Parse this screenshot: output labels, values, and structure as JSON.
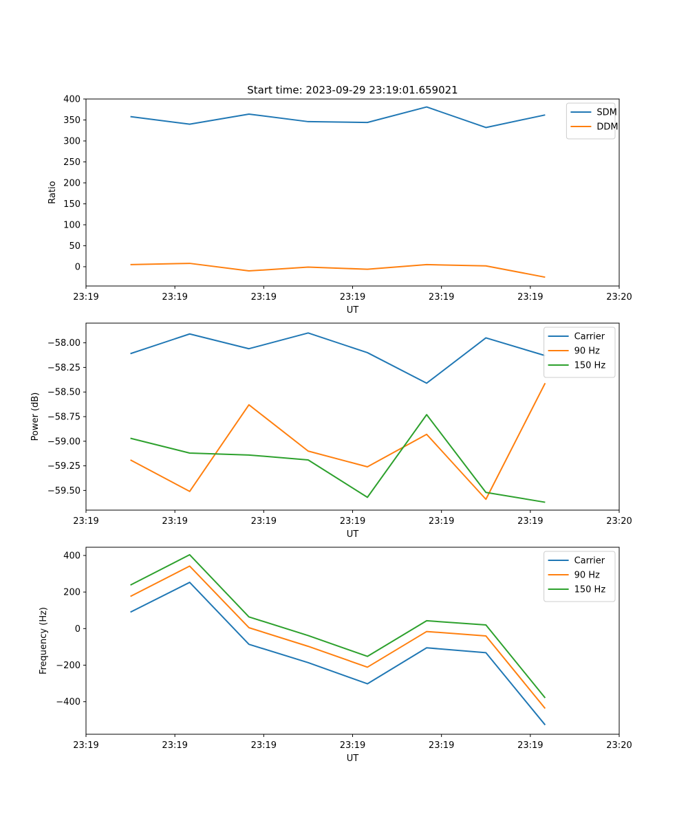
{
  "chart_data": [
    {
      "type": "line",
      "title": "Start time: 2023-09-29 23:19:01.659021",
      "xlabel": "UT",
      "ylabel": "Ratio",
      "x": [
        1,
        2,
        3,
        4,
        5,
        6,
        7,
        8
      ],
      "xlim": [
        0.25,
        9.25
      ],
      "xticks": [
        0.25,
        1.75,
        3.25,
        4.75,
        6.25,
        7.75,
        9.25
      ],
      "xtick_labels": [
        "23:19",
        "23:19",
        "23:19",
        "23:19",
        "23:19",
        "23:19",
        "23:20"
      ],
      "ylim": [
        -46,
        400
      ],
      "yticks": [
        0,
        50,
        100,
        150,
        200,
        250,
        300,
        350,
        400
      ],
      "ytick_labels": [
        "0",
        "50",
        "100",
        "150",
        "200",
        "250",
        "300",
        "350",
        "400"
      ],
      "legend_position": "top-right",
      "series": [
        {
          "name": "SDM",
          "color": "#1f77b4",
          "values": [
            358,
            340,
            364,
            346,
            344,
            381,
            332,
            362
          ]
        },
        {
          "name": "DDM",
          "color": "#ff7f0e",
          "values": [
            5,
            8,
            -10,
            -1,
            -6,
            5,
            2,
            -25
          ]
        }
      ]
    },
    {
      "type": "line",
      "title": "",
      "xlabel": "UT",
      "ylabel": "Power (dB)",
      "x": [
        1,
        2,
        3,
        4,
        5,
        6,
        7,
        8
      ],
      "xlim": [
        0.25,
        9.25
      ],
      "xticks": [
        0.25,
        1.75,
        3.25,
        4.75,
        6.25,
        7.75,
        9.25
      ],
      "xtick_labels": [
        "23:19",
        "23:19",
        "23:19",
        "23:19",
        "23:19",
        "23:19",
        "23:20"
      ],
      "ylim": [
        -59.7,
        -57.8
      ],
      "yticks": [
        -59.5,
        -59.25,
        -59.0,
        -58.75,
        -58.5,
        -58.25,
        -58.0
      ],
      "ytick_labels": [
        "−59.50",
        "−59.25",
        "−59.00",
        "−58.75",
        "−58.50",
        "−58.25",
        "−58.00"
      ],
      "legend_position": "top-right",
      "series": [
        {
          "name": "Carrier",
          "color": "#1f77b4",
          "values": [
            -58.11,
            -57.91,
            -58.06,
            -57.9,
            -58.1,
            -58.41,
            -57.95,
            -58.13
          ]
        },
        {
          "name": "90 Hz",
          "color": "#ff7f0e",
          "values": [
            -59.19,
            -59.51,
            -58.63,
            -59.1,
            -59.26,
            -58.93,
            -59.59,
            -58.41
          ]
        },
        {
          "name": "150 Hz",
          "color": "#2ca02c",
          "values": [
            -58.97,
            -59.12,
            -59.14,
            -59.19,
            -59.57,
            -58.73,
            -59.52,
            -59.62
          ]
        }
      ]
    },
    {
      "type": "line",
      "title": "",
      "xlabel": "UT",
      "ylabel": "Frequency (Hz)",
      "x": [
        1,
        2,
        3,
        4,
        5,
        6,
        7,
        8
      ],
      "xlim": [
        0.25,
        9.25
      ],
      "xticks": [
        0.25,
        1.75,
        3.25,
        4.75,
        6.25,
        7.75,
        9.25
      ],
      "xtick_labels": [
        "23:19",
        "23:19",
        "23:19",
        "23:19",
        "23:19",
        "23:19",
        "23:20"
      ],
      "ylim": [
        -578,
        445
      ],
      "yticks": [
        -400,
        -200,
        0,
        200,
        400
      ],
      "ytick_labels": [
        "−400",
        "−200",
        "0",
        "200",
        "400"
      ],
      "legend_position": "top-right",
      "series": [
        {
          "name": "Carrier",
          "color": "#1f77b4",
          "values": [
            90,
            253,
            -86,
            -186,
            -302,
            -105,
            -132,
            -527
          ]
        },
        {
          "name": "90 Hz",
          "color": "#ff7f0e",
          "values": [
            176,
            342,
            5,
            -97,
            -211,
            -16,
            -40,
            -437
          ]
        },
        {
          "name": "150 Hz",
          "color": "#2ca02c",
          "values": [
            238,
            404,
            64,
            -38,
            -152,
            43,
            20,
            -379
          ]
        }
      ]
    }
  ]
}
